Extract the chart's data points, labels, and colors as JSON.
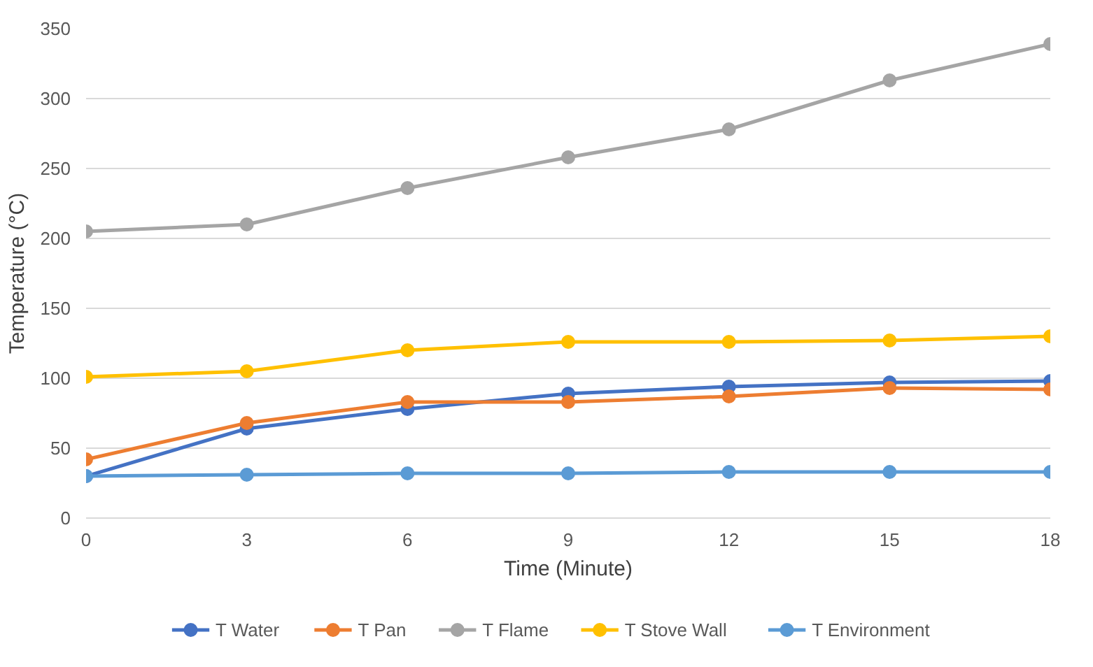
{
  "chart_data": {
    "type": "line",
    "xlabel": "Time (Minute)",
    "ylabel": "Temperature (°C)",
    "x": [
      0,
      3,
      6,
      9,
      12,
      15,
      18
    ],
    "xlim": [
      0,
      18
    ],
    "xticks": [
      0,
      3,
      6,
      9,
      12,
      15,
      18
    ],
    "ylim": [
      0,
      350
    ],
    "yticks": [
      0,
      50,
      100,
      150,
      200,
      250,
      300,
      350
    ],
    "grid": "y",
    "legend": "bottom",
    "marker": "circle",
    "line_style": "solid",
    "series": [
      {
        "name": "T Water",
        "color": "#4472c4",
        "values": [
          30,
          64,
          78,
          89,
          94,
          97,
          98
        ]
      },
      {
        "name": "T Pan",
        "color": "#ed7d31",
        "values": [
          42,
          68,
          83,
          83,
          87,
          93,
          92
        ]
      },
      {
        "name": "T Flame",
        "color": "#a5a5a5",
        "values": [
          205,
          210,
          236,
          258,
          278,
          313,
          339
        ]
      },
      {
        "name": "T Stove Wall",
        "color": "#ffc000",
        "values": [
          101,
          105,
          120,
          126,
          126,
          127,
          130
        ]
      },
      {
        "name": "T Environment",
        "color": "#5b9bd5",
        "values": [
          30,
          31,
          32,
          32,
          33,
          33,
          33
        ]
      }
    ]
  }
}
